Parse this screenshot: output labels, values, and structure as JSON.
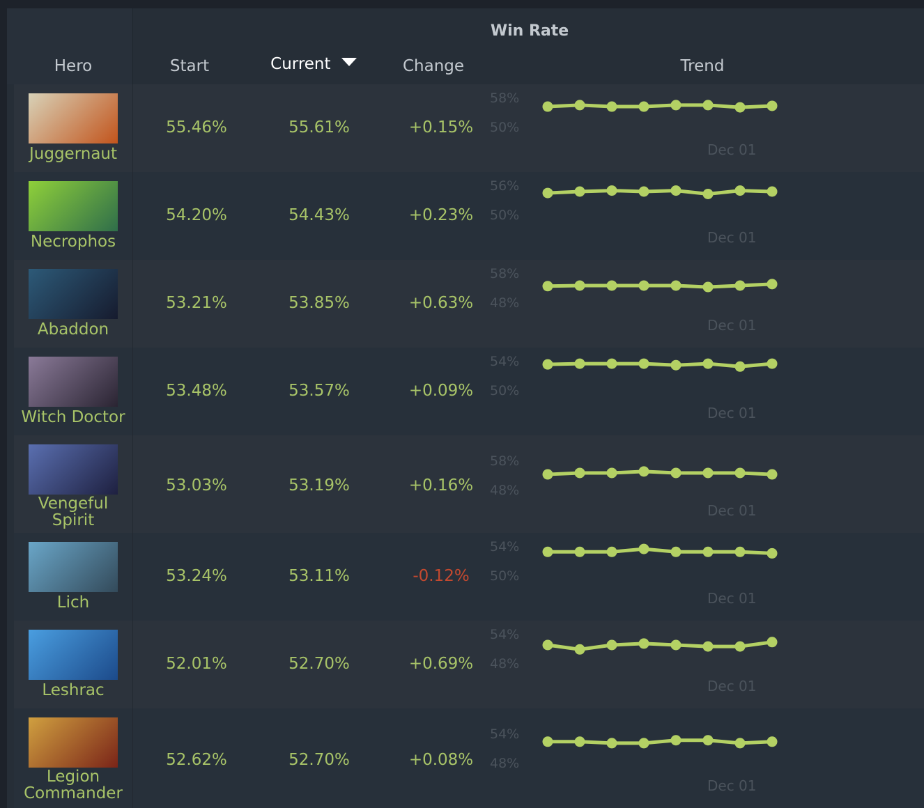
{
  "header": {
    "group_title": "Win Rate",
    "columns": {
      "hero": "Hero",
      "start": "Start",
      "current": "Current",
      "change": "Change",
      "trend": "Trend"
    },
    "sort_column": "Current",
    "sort_direction": "descending"
  },
  "colors": {
    "positive": "#a8c468",
    "negative": "#c4492f",
    "trend_line": "#b4d164"
  },
  "rows": [
    {
      "hero": "Juggernaut",
      "start": "55.46%",
      "current": "55.61%",
      "change": "+0.15%",
      "change_sign": "positive",
      "y_axis": {
        "top": "58%",
        "bottom": "50%",
        "max": 58,
        "min": 50
      },
      "x_label": "Dec 01",
      "trend": [
        55.9,
        56.3,
        55.9,
        55.9,
        56.3,
        56.3,
        55.7,
        56.1
      ],
      "img": [
        "#d8d2b8",
        "#c2541c"
      ]
    },
    {
      "hero": "Necrophos",
      "start": "54.20%",
      "current": "54.43%",
      "change": "+0.23%",
      "change_sign": "positive",
      "y_axis": {
        "top": "56%",
        "bottom": "50%",
        "max": 56,
        "min": 50
      },
      "x_label": "Dec 01",
      "trend": [
        54.7,
        55.0,
        55.2,
        55.0,
        55.2,
        54.5,
        55.2,
        55.0
      ],
      "img": [
        "#8fd03a",
        "#2f6e4a"
      ]
    },
    {
      "hero": "Abaddon",
      "start": "53.21%",
      "current": "53.85%",
      "change": "+0.63%",
      "change_sign": "positive",
      "y_axis": {
        "top": "58%",
        "bottom": "48%",
        "max": 58,
        "min": 48
      },
      "x_label": "Dec 01",
      "trend": [
        54.0,
        54.2,
        54.2,
        54.2,
        54.2,
        53.7,
        54.2,
        54.7
      ],
      "img": [
        "#2d5a78",
        "#161b2e"
      ]
    },
    {
      "hero": "Witch Doctor",
      "start": "53.48%",
      "current": "53.57%",
      "change": "+0.09%",
      "change_sign": "positive",
      "y_axis": {
        "top": "54%",
        "bottom": "50%",
        "max": 54,
        "min": 50
      },
      "x_label": "Dec 01",
      "trend": [
        53.7,
        53.8,
        53.8,
        53.8,
        53.6,
        53.8,
        53.4,
        53.8
      ],
      "img": [
        "#8a7a98",
        "#2a2432"
      ]
    },
    {
      "hero": "Vengeful Spirit",
      "start": "53.03%",
      "current": "53.19%",
      "change": "+0.16%",
      "change_sign": "positive",
      "y_axis": {
        "top": "58%",
        "bottom": "48%",
        "max": 58,
        "min": 48
      },
      "x_label": "Dec 01",
      "trend": [
        53.7,
        54.2,
        54.2,
        54.7,
        54.2,
        54.2,
        54.2,
        53.7
      ],
      "img": [
        "#5a6fb0",
        "#1e2040"
      ]
    },
    {
      "hero": "Lich",
      "start": "53.24%",
      "current": "53.11%",
      "change": "-0.12%",
      "change_sign": "negative",
      "y_axis": {
        "top": "54%",
        "bottom": "50%",
        "max": 54,
        "min": 50
      },
      "x_label": "Dec 01",
      "trend": [
        53.4,
        53.4,
        53.4,
        53.8,
        53.4,
        53.4,
        53.4,
        53.2
      ],
      "img": [
        "#6aa6c8",
        "#334a5a"
      ]
    },
    {
      "hero": "Leshrac",
      "start": "52.01%",
      "current": "52.70%",
      "change": "+0.69%",
      "change_sign": "positive",
      "y_axis": {
        "top": "54%",
        "bottom": "48%",
        "max": 54,
        "min": 48
      },
      "x_label": "Dec 01",
      "trend": [
        52.0,
        51.1,
        52.0,
        52.3,
        52.0,
        51.7,
        51.7,
        52.6
      ],
      "img": [
        "#4a9ee0",
        "#1c4a8a"
      ]
    },
    {
      "hero": "Legion Commander",
      "start": "52.62%",
      "current": "52.70%",
      "change": "+0.08%",
      "change_sign": "positive",
      "y_axis": {
        "top": "54%",
        "bottom": "48%",
        "max": 54,
        "min": 48
      },
      "x_label": "Dec 01",
      "trend": [
        52.6,
        52.6,
        52.3,
        52.3,
        52.9,
        52.9,
        52.3,
        52.6
      ],
      "img": [
        "#d0a040",
        "#7a2418"
      ]
    }
  ]
}
